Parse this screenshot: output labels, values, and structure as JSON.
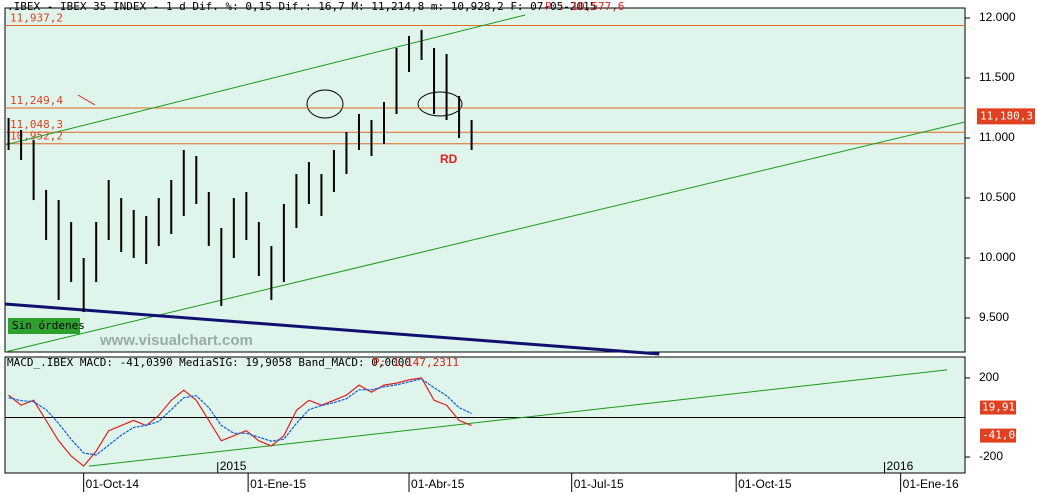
{
  "chart_data": [
    {
      "type": "ohlc",
      "title": ".IBEX - IBEX 35 INDEX -  1 d Dif.  %: 0,15 Dif.: 16,7 M: 11,214,8 m: 10,928,2 F: 07-05-2015",
      "last_label": "P : 10,577,6",
      "x": [
        -42,
        -35,
        -28,
        -21,
        -14,
        -7,
        0,
        7,
        14,
        21,
        28,
        35,
        42,
        49,
        56,
        63,
        70,
        77,
        84,
        91,
        98,
        105,
        112,
        119,
        126,
        133,
        140,
        147,
        154,
        161,
        168,
        175,
        182,
        189,
        196,
        203,
        210,
        217
      ],
      "high": [
        11167,
        11067,
        10983,
        10567,
        10483,
        10300,
        10000,
        10300,
        10650,
        10500,
        10400,
        10350,
        10500,
        10650,
        10900,
        10850,
        10550,
        10250,
        10500,
        10550,
        10300,
        10100,
        10450,
        10700,
        10800,
        10700,
        10900,
        11050,
        11200,
        11150,
        11300,
        11750,
        11850,
        11900,
        11750,
        11700,
        11350,
        11150
      ],
      "low": [
        10900,
        10817,
        10483,
        10150,
        9650,
        9800,
        9550,
        9800,
        10150,
        10050,
        10000,
        9950,
        10100,
        10200,
        10350,
        10450,
        10100,
        9600,
        10000,
        10150,
        9850,
        9650,
        9800,
        10250,
        10450,
        10350,
        10550,
        10700,
        10900,
        10850,
        10950,
        11200,
        11550,
        11650,
        11200,
        11150,
        11000,
        10900
      ],
      "color": "#000000",
      "xlim": [
        -44,
        493
      ],
      "xticks": [
        {
          "value": 0,
          "label": "01-Oct-14"
        },
        {
          "value": 92,
          "label": "01-Ene-15"
        },
        {
          "value": 182,
          "label": "01-Abr-15"
        },
        {
          "value": 273,
          "label": "01-Jul-15"
        },
        {
          "value": 365,
          "label": "01-Oct-15"
        },
        {
          "value": 457,
          "label": "01-Ene-16"
        }
      ],
      "year_marks": [
        {
          "value": 75,
          "label": "2015"
        },
        {
          "value": 448,
          "label": "2016"
        }
      ],
      "ylim": [
        9217,
        12083
      ],
      "yticks": [
        {
          "value": 12000,
          "label": "12.000"
        },
        {
          "value": 11500,
          "label": "11.500"
        },
        {
          "value": 11000,
          "label": "11.000"
        },
        {
          "value": 10500,
          "label": "10.500"
        },
        {
          "value": 10000,
          "label": "10.000"
        },
        {
          "value": 9500,
          "label": "9.500"
        }
      ],
      "levels": [
        {
          "value": 11937.2,
          "label": "11,937,2"
        },
        {
          "value": 11249.4,
          "label": "11,249,4"
        },
        {
          "value": 11048.3,
          "label": "11,048,3"
        },
        {
          "value": 10952.2,
          "label": "10,952,2"
        }
      ],
      "current": {
        "value": 11180.3,
        "label": "11,180,3"
      },
      "trendlines": [
        {
          "color": "#1a9a1a",
          "x": [
            -44,
            247
          ],
          "y": [
            10942,
            12025
          ]
        },
        {
          "color": "#1a9a1a",
          "x": [
            -44,
            493
          ],
          "y": [
            9217,
            11133
          ]
        },
        {
          "color": "#101070",
          "x": [
            -44,
            322
          ],
          "y": [
            9617,
            9200
          ]
        }
      ],
      "annotations": [
        "RD",
        "Sin órdenes",
        "www.visualchart.com"
      ]
    },
    {
      "type": "line",
      "title": "MACD_.IBEX MACD: -41,0390 MediaSIG: 19,9058 Band_MACD: 0,0000",
      "last_label": "P: 1,147,2311",
      "x": [
        -42,
        -35,
        -28,
        -21,
        -14,
        -7,
        0,
        7,
        14,
        21,
        28,
        35,
        42,
        49,
        56,
        63,
        70,
        77,
        84,
        91,
        98,
        105,
        112,
        119,
        126,
        133,
        140,
        147,
        154,
        161,
        168,
        175,
        182,
        189,
        196,
        203,
        210,
        217
      ],
      "series": [
        {
          "name": "MACD",
          "color": "#e02020",
          "values": [
            113,
            62,
            87,
            -15,
            -118,
            -195,
            -246,
            -170,
            -67,
            -41,
            -15,
            -41,
            10,
            87,
            138,
            87,
            -15,
            -118,
            -92,
            -67,
            -118,
            -144,
            -92,
            36,
            87,
            62,
            87,
            113,
            164,
            128,
            164,
            174,
            190,
            200,
            87,
            62,
            -15,
            -41
          ]
        },
        {
          "name": "MediaSIG",
          "color": "#1060e0",
          "values": [
            100,
            85,
            80,
            40,
            -30,
            -110,
            -180,
            -190,
            -140,
            -90,
            -50,
            -40,
            -20,
            40,
            100,
            110,
            50,
            -40,
            -80,
            -80,
            -100,
            -120,
            -110,
            -30,
            40,
            60,
            75,
            95,
            140,
            140,
            155,
            165,
            180,
            195,
            150,
            110,
            50,
            20
          ]
        }
      ],
      "band": 0,
      "xlim": [
        -44,
        493
      ],
      "ylim": [
        -281,
        306
      ],
      "yticks": [
        200,
        -200
      ],
      "boxes": [
        {
          "value": 19.91,
          "label": "19,91"
        },
        {
          "value": -41.04,
          "label": "-41,04"
        }
      ],
      "trendlines": [
        {
          "color": "#1a9a1a",
          "x": [
            3,
            483
          ],
          "y": [
            -246,
            241
          ]
        }
      ]
    }
  ]
}
